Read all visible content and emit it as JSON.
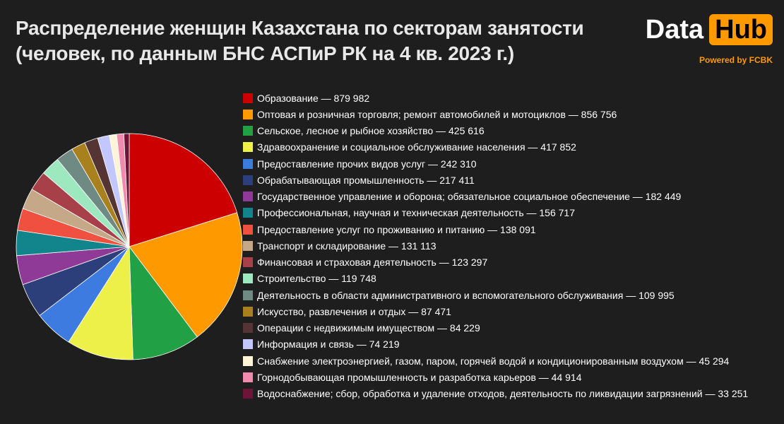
{
  "title": {
    "line1": "Распределение женщин Казахстана по секторам занятости",
    "line2": "(человек, по данным БНС АСПиР РК на 4 кв. 2023 г.)"
  },
  "logo": {
    "data_text": "Data",
    "hub_text": "Hub",
    "powered": "Powered by FCBK"
  },
  "chart_data": {
    "type": "pie",
    "title": "Распределение женщин Казахстана по секторам занятости (человек, по данным БНС АСПиР РК на 4 кв. 2023 г.)",
    "start": "12 o'clock, clockwise",
    "legend_position": "right",
    "slices": [
      {
        "label": "Образование",
        "value": 879982,
        "value_text": "879 982",
        "color": "#cc0000"
      },
      {
        "label": "Оптовая и розничная торговля; ремонт автомобилей и мотоциклов",
        "value": 856756,
        "value_text": "856 756",
        "color": "#ff9900"
      },
      {
        "label": "Сельское, лесное и рыбное хозяйство",
        "value": 425616,
        "value_text": "425 616",
        "color": "#22a045"
      },
      {
        "label": "Здравоохранение и социальное обслуживание населения",
        "value": 417852,
        "value_text": "417 852",
        "color": "#eef04a"
      },
      {
        "label": "Предоставление прочих видов услуг",
        "value": 242310,
        "value_text": "242 310",
        "color": "#3d7be0"
      },
      {
        "label": "Обрабатывающая промышленность",
        "value": 217411,
        "value_text": "217 411",
        "color": "#2d3f7a"
      },
      {
        "label": "Государственное управление и оборона; обязательное социальное обеспечение",
        "value": 182449,
        "value_text": "182 449",
        "color": "#8e3a96"
      },
      {
        "label": "Профессиональная, научная и техническая деятельность",
        "value": 156717,
        "value_text": "156 717",
        "color": "#11848c"
      },
      {
        "label": "Предоставление услуг по проживанию и питанию",
        "value": 138091,
        "value_text": "138 091",
        "color": "#f05040"
      },
      {
        "label": "Транспорт и складирование",
        "value": 131113,
        "value_text": "131 113",
        "color": "#c4a888"
      },
      {
        "label": "Финансовая и страховая деятельность",
        "value": 123297,
        "value_text": "123 297",
        "color": "#a8404a"
      },
      {
        "label": "Строительство",
        "value": 119748,
        "value_text": "119 748",
        "color": "#9ee8c0"
      },
      {
        "label": "Деятельность в области административного и вспомогательного обслуживания",
        "value": 109995,
        "value_text": "109 995",
        "color": "#6e8a82"
      },
      {
        "label": "Искусство, развлечения и отдых",
        "value": 87471,
        "value_text": "87 471",
        "color": "#a8801e"
      },
      {
        "label": "Операции с недвижимым имуществом",
        "value": 84229,
        "value_text": "84 229",
        "color": "#553434"
      },
      {
        "label": "Информация и связь",
        "value": 74219,
        "value_text": "74 219",
        "color": "#c2c8ff"
      },
      {
        "label": "Снабжение электроэнергией, газом, паром, горячей водой и  кондиционированным воздухом",
        "value": 45294,
        "value_text": "45 294",
        "color": "#fff4d8"
      },
      {
        "label": "Горнодобывающая промышленность и разработка карьеров",
        "value": 44914,
        "value_text": "44 914",
        "color": "#f28aae"
      },
      {
        "label": "Водоснабжение; сбор, обработка и удаление отходов, деятельность по ликвидации загрязнений",
        "value": 33251,
        "value_text": "33 251",
        "color": "#6e1438"
      }
    ]
  }
}
